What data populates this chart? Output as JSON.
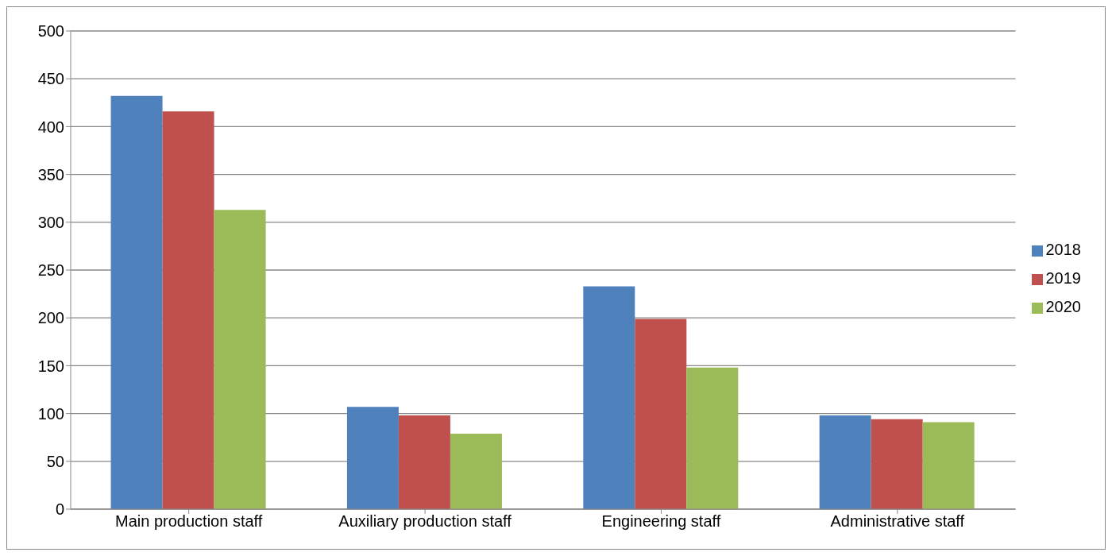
{
  "chart_data": {
    "type": "bar",
    "categories": [
      "Main production staff",
      "Auxiliary production staff",
      "Engineering staff",
      "Administrative staff"
    ],
    "series": [
      {
        "name": "2018",
        "color": "#4f81bd",
        "values": [
          432,
          107,
          233,
          98
        ]
      },
      {
        "name": "2019",
        "color": "#c0504d",
        "values": [
          416,
          98,
          199,
          94
        ]
      },
      {
        "name": "2020",
        "color": "#9bbb59",
        "values": [
          313,
          79,
          148,
          91
        ]
      }
    ],
    "ylim": [
      0,
      500
    ],
    "yticks": [
      0,
      50,
      100,
      150,
      200,
      250,
      300,
      350,
      400,
      450,
      500
    ],
    "grid": "y",
    "legend": "right"
  }
}
